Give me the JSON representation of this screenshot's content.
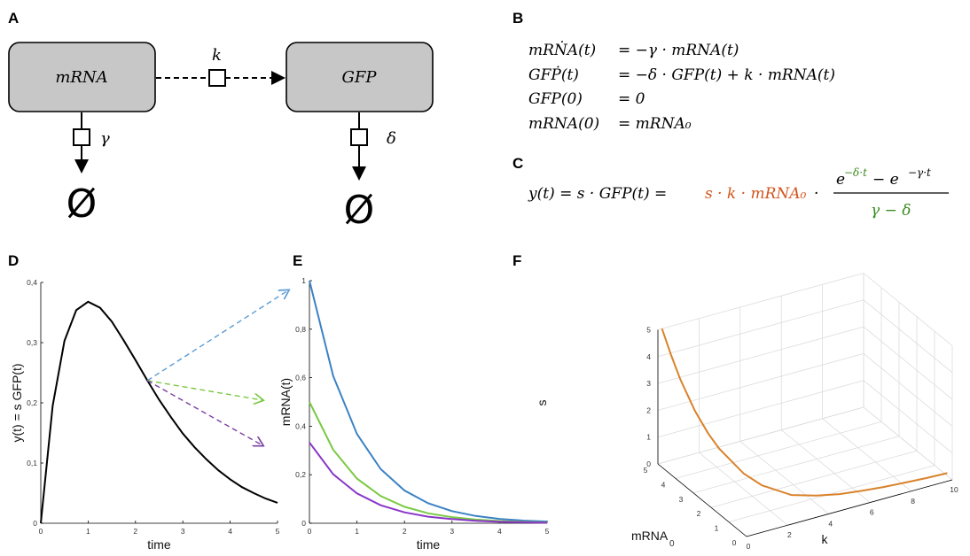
{
  "panels": {
    "a": "A",
    "b": "B",
    "c": "C",
    "d": "D",
    "e": "E",
    "f": "F"
  },
  "diagram": {
    "mrna_box": "mRNA",
    "gfp_box": "GFP",
    "k_label": "k",
    "gamma_label": "γ",
    "delta_label": "δ",
    "empty_set": "Ø"
  },
  "equations_b": [
    {
      "lhs": "mRṄA(t)",
      "rhs": "=  −γ · mRNA(t)"
    },
    {
      "lhs": "GFṖ(t)",
      "rhs": "= −δ · GFP(t) + k · mRNA(t)"
    },
    {
      "lhs": "GFP(0)",
      "rhs": "= 0"
    },
    {
      "lhs": "mRNA(0)",
      "rhs": "=  mRNA₀"
    }
  ],
  "equation_c": {
    "lhs": "y(t) = s · GFP(t) = ",
    "scale": "s · k · mRNA₀",
    "dot": " · ",
    "num_e1": "e",
    "num_sup1": "−δ·t",
    "num_minus": " − e",
    "num_sup2": "−γ·t",
    "den": "γ − δ",
    "colors": {
      "scale": "#d2541c",
      "rate": "#3a8a1e"
    }
  },
  "chart_data": [
    {
      "type": "line",
      "panel": "D",
      "xlabel": "time",
      "ylabel": "y(t) = s GFP(t)",
      "xlim": [
        0,
        5
      ],
      "ylim": [
        0,
        0.4
      ],
      "xticks": [
        "0",
        "1",
        "2",
        "3",
        "4",
        "5"
      ],
      "yticks": [
        "0",
        "0,1",
        "0,2",
        "0,3",
        "0,4"
      ],
      "series": [
        {
          "color": "#000000",
          "x": [
            0,
            0.25,
            0.5,
            0.75,
            1,
            1.25,
            1.5,
            1.75,
            2,
            2.25,
            2.5,
            2.75,
            3,
            3.25,
            3.5,
            3.75,
            4,
            4.25,
            4.5,
            4.75,
            5
          ],
          "y": [
            0,
            0.195,
            0.303,
            0.354,
            0.368,
            0.358,
            0.335,
            0.304,
            0.271,
            0.237,
            0.205,
            0.176,
            0.149,
            0.126,
            0.106,
            0.088,
            0.073,
            0.06,
            0.05,
            0.041,
            0.034
          ]
        }
      ],
      "arrows": [
        "#5b9bd5",
        "#7ac943",
        "#7b3fa0"
      ]
    },
    {
      "type": "line",
      "panel": "E",
      "xlabel": "time",
      "ylabel": "mRNA(t)",
      "xlim": [
        0,
        5
      ],
      "ylim": [
        0,
        1
      ],
      "xticks": [
        "0",
        "1",
        "2",
        "3",
        "4",
        "5"
      ],
      "yticks": [
        "0",
        "0,2",
        "0,4",
        "0,6",
        "0,8",
        "1"
      ],
      "series": [
        {
          "color": "#3b82c4",
          "x": [
            0,
            0.5,
            1,
            1.5,
            2,
            2.5,
            3,
            3.5,
            4,
            4.5,
            5
          ],
          "y": [
            1,
            0.607,
            0.368,
            0.223,
            0.135,
            0.082,
            0.05,
            0.03,
            0.018,
            0.011,
            0.007
          ]
        },
        {
          "color": "#7ac943",
          "x": [
            0,
            0.5,
            1,
            1.5,
            2,
            2.5,
            3,
            3.5,
            4,
            4.5,
            5
          ],
          "y": [
            0.5,
            0.303,
            0.184,
            0.112,
            0.068,
            0.041,
            0.025,
            0.015,
            0.009,
            0.006,
            0.003
          ]
        },
        {
          "color": "#8a35c8",
          "x": [
            0,
            0.5,
            1,
            1.5,
            2,
            2.5,
            3,
            3.5,
            4,
            4.5,
            5
          ],
          "y": [
            0.333,
            0.202,
            0.123,
            0.074,
            0.045,
            0.027,
            0.017,
            0.01,
            0.006,
            0.004,
            0.002
          ]
        }
      ]
    },
    {
      "type": "line",
      "panel": "F",
      "xlabel": "k",
      "ylabel": "mRNA",
      "ylabel_sub": "0",
      "zlabel": "s",
      "k_ticks": [
        "0",
        "2",
        "4",
        "6",
        "8",
        "10"
      ],
      "m_ticks": [
        "0",
        "1",
        "2",
        "3",
        "4",
        "5"
      ],
      "s_ticks": [
        "0",
        "1",
        "2",
        "3",
        "4",
        "5"
      ],
      "series": [
        {
          "color": "#d9822b",
          "k": [
            0.2,
            0.3,
            0.4,
            0.6,
            0.8,
            1,
            1.5,
            2,
            3,
            4,
            5,
            6,
            7,
            8,
            9,
            10
          ],
          "m": [
            5,
            4.6,
            4.2,
            3.6,
            3.1,
            2.7,
            1.9,
            1.45,
            0.95,
            0.7,
            0.56,
            0.47,
            0.4,
            0.35,
            0.31,
            0.28
          ],
          "s": [
            5,
            4.2,
            3.5,
            2.6,
            2.0,
            1.6,
            1.0,
            0.7,
            0.4,
            0.3,
            0.22,
            0.18,
            0.15,
            0.13,
            0.11,
            0.1
          ]
        }
      ]
    }
  ]
}
